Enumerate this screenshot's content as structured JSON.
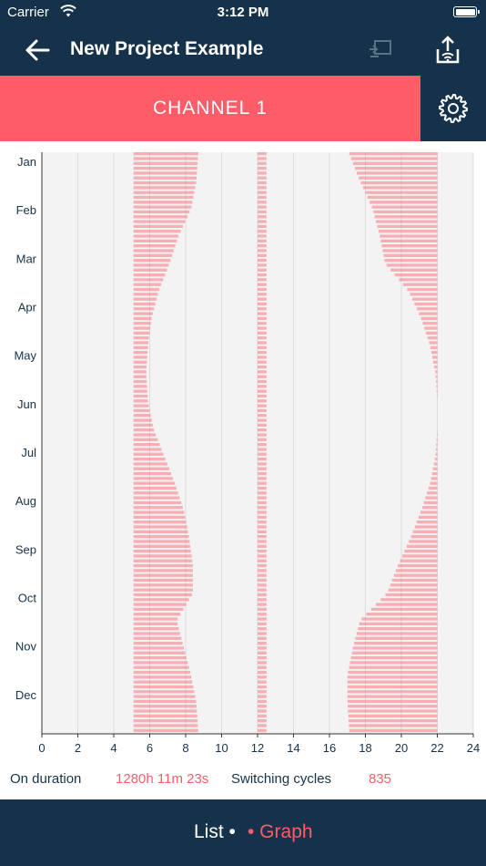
{
  "status": {
    "carrier": "Carrier",
    "time": "3:12 PM"
  },
  "nav": {
    "title": "New Project Example",
    "back_icon": "arrow-left-icon",
    "cast_icon": "cast-icon",
    "upload_icon": "upload-wifi-icon"
  },
  "channel": {
    "label": "CHANNEL 1",
    "settings_icon": "gear-icon"
  },
  "chart_data": {
    "type": "bar",
    "orientation": "horizontal",
    "grid": true,
    "xlim": [
      0,
      24
    ],
    "x_ticks": [
      "0",
      "2",
      "4",
      "6",
      "8",
      "10",
      "12",
      "14",
      "16",
      "18",
      "20",
      "22",
      "24"
    ],
    "months": [
      "Jan",
      "Feb",
      "Mar",
      "Apr",
      "May",
      "Jun",
      "Jul",
      "Aug",
      "Sep",
      "Oct",
      "Nov",
      "Dec"
    ],
    "color": "#fd5c68",
    "series": [
      {
        "start": 5.1,
        "end": [
          8.7,
          8.6,
          8.3,
          7.6,
          7.1,
          6.5,
          6.1,
          5.9,
          5.8,
          5.9,
          6.2,
          6.8,
          7.4,
          7.9,
          8.2,
          8.4,
          8.4,
          7.5,
          7.9,
          8.3,
          8.6,
          8.7
        ]
      },
      {
        "start": 12.0,
        "end": [
          12.5,
          12.5,
          12.5,
          12.5,
          12.5,
          12.5,
          12.5,
          12.5,
          12.5,
          12.5,
          12.5,
          12.5,
          12.5,
          12.5,
          12.5,
          12.5,
          12.5,
          12.5,
          12.5,
          12.5,
          12.5,
          12.5
        ]
      },
      {
        "start": [
          17.1,
          17.7,
          18.4,
          18.8,
          19.1,
          20.4,
          21.1,
          21.6,
          21.9,
          22.0,
          22.0,
          21.9,
          21.6,
          21.1,
          20.5,
          19.8,
          19.2,
          17.7,
          17.3,
          17.0,
          17.0,
          17.1
        ],
        "end": 22.0
      }
    ]
  },
  "summary": {
    "on_duration_label": "On duration",
    "on_duration_value": "1280h 11m 23s",
    "switching_label": "Switching cycles",
    "switching_value": "835"
  },
  "tabs": {
    "list": "List •",
    "graph": "• Graph"
  }
}
